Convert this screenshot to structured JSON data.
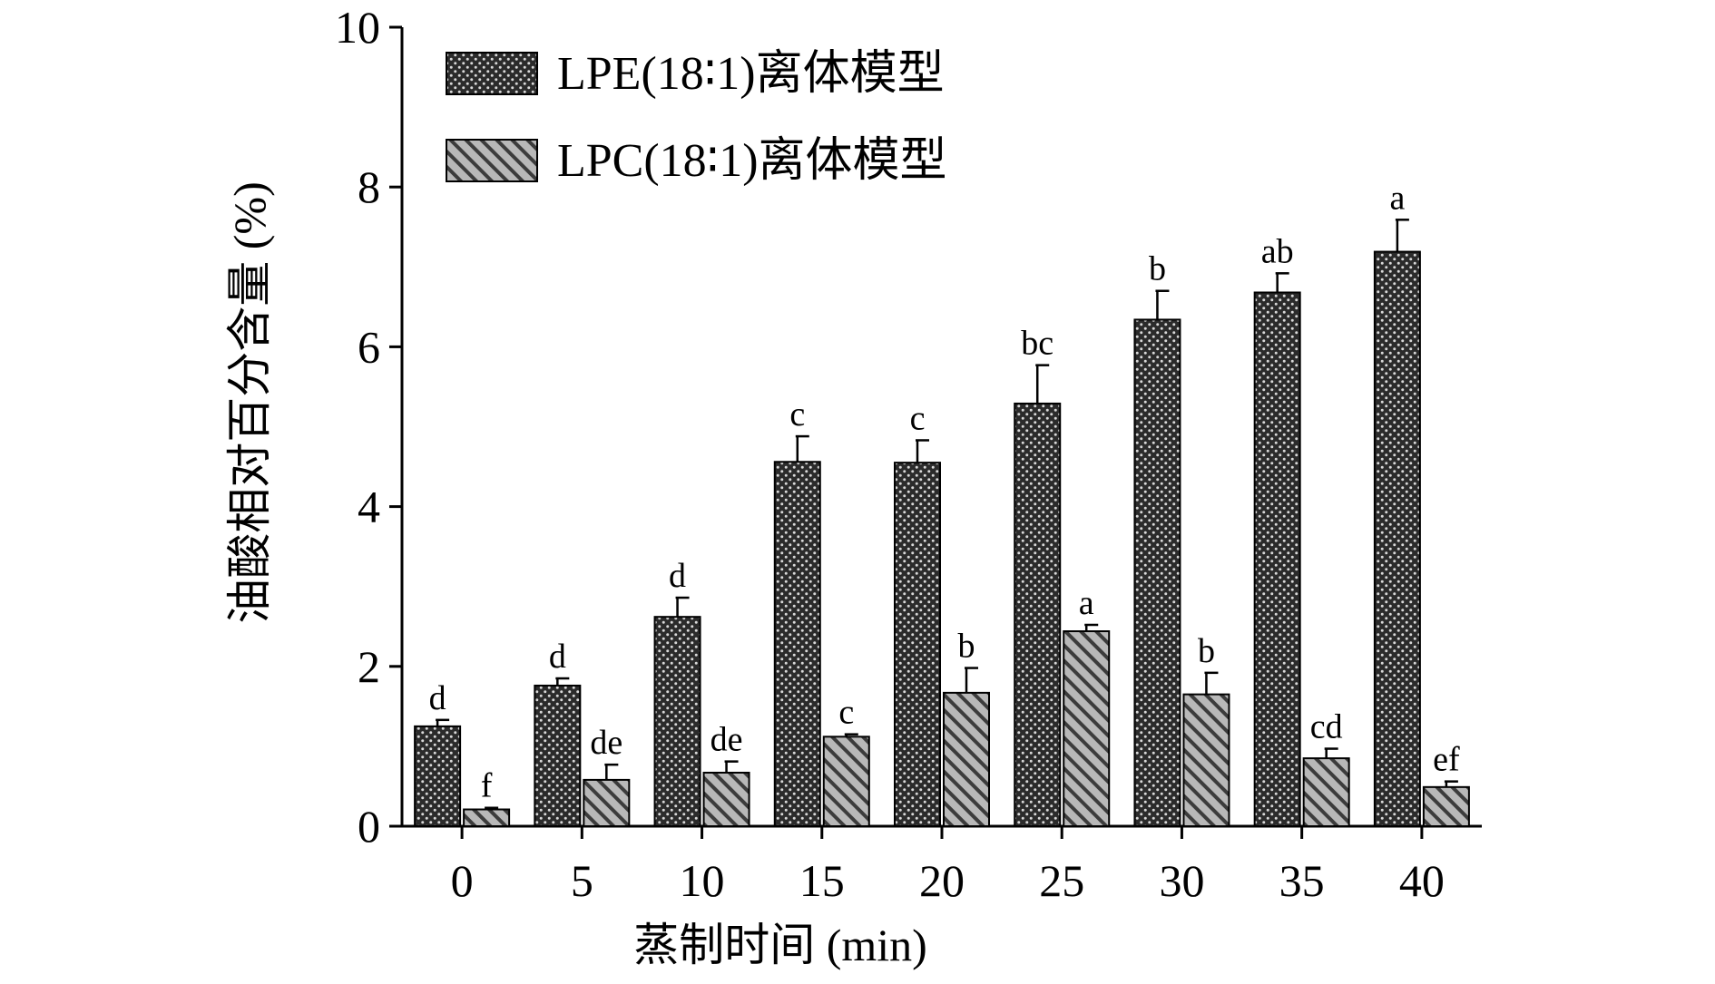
{
  "chart_data": {
    "type": "bar",
    "xlabel": "蒸制时间 (min)",
    "ylabel": "油酸相对百分含量 (%)",
    "ylim": [
      0,
      10
    ],
    "yticks": [
      "0",
      "2",
      "4",
      "6",
      "8",
      "10"
    ],
    "categories": [
      "0",
      "5",
      "10",
      "15",
      "20",
      "25",
      "30",
      "35",
      "40"
    ],
    "legend_position": "top-left",
    "series": [
      {
        "name": "LPE(18∶1)离体模型",
        "pattern": "crosshatch-dark",
        "fill": "#3a3a3a",
        "values": [
          1.25,
          1.76,
          2.62,
          4.56,
          4.55,
          5.29,
          6.34,
          6.68,
          7.19
        ],
        "errors": [
          0.08,
          0.09,
          0.24,
          0.32,
          0.28,
          0.48,
          0.36,
          0.24,
          0.4
        ],
        "labels": [
          "d",
          "d",
          "d",
          "c",
          "c",
          "bc",
          "b",
          "ab",
          "a"
        ]
      },
      {
        "name": "LPC(18∶1)离体模型",
        "pattern": "diagonal-hatch",
        "fill": "#b3b3b3",
        "values": [
          0.21,
          0.58,
          0.67,
          1.12,
          1.67,
          2.44,
          1.65,
          0.85,
          0.49
        ],
        "errors": [
          0.02,
          0.19,
          0.14,
          0.03,
          0.31,
          0.08,
          0.27,
          0.12,
          0.07
        ],
        "labels": [
          "f",
          "de",
          "de",
          "c",
          "b",
          "a",
          "b",
          "cd",
          "ef"
        ]
      }
    ]
  }
}
